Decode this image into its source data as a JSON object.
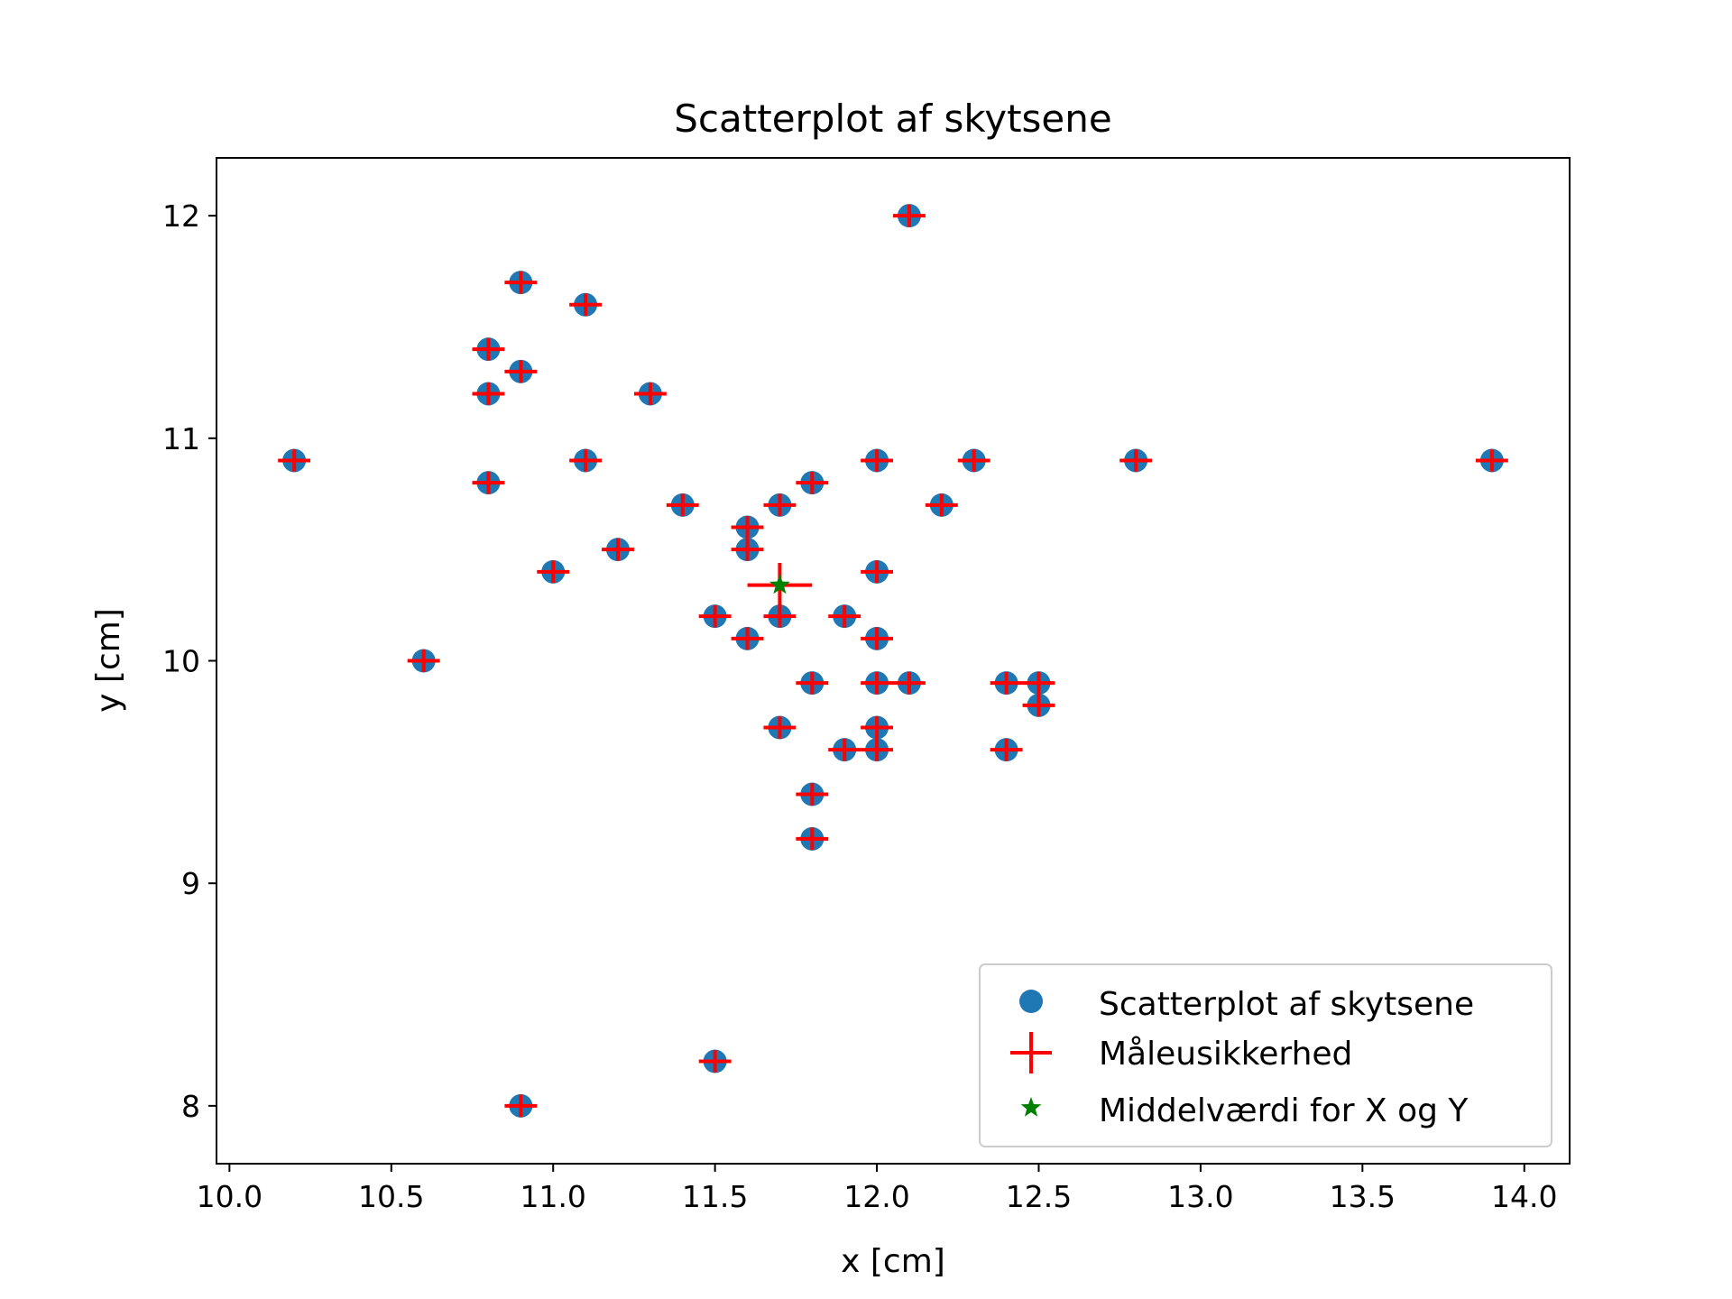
{
  "colors": {
    "points": "#1f77b4",
    "error_bars": "#ff0000",
    "mean": "#008000",
    "axes": "#000000",
    "legend_border": "#cccccc"
  },
  "chart_data": {
    "type": "scatter",
    "title": "Scatterplot af skytsene",
    "xlabel": "x [cm]",
    "ylabel": "y [cm]",
    "xlim": [
      9.96,
      14.14
    ],
    "ylim": [
      7.74,
      12.26
    ],
    "xticks": [
      10.0,
      10.5,
      11.0,
      11.5,
      12.0,
      12.5,
      13.0,
      13.5,
      14.0
    ],
    "xtick_labels": [
      "10.0",
      "10.5",
      "11.0",
      "11.5",
      "12.0",
      "12.5",
      "13.0",
      "13.5",
      "14.0"
    ],
    "yticks": [
      8,
      9,
      10,
      11,
      12
    ],
    "ytick_labels": [
      "8",
      "9",
      "10",
      "11",
      "12"
    ],
    "grid": false,
    "legend_position": "lower right",
    "legend": [
      "Scatterplot af skytsene",
      "Måleusikkerhed",
      "Middelværdi for X og Y"
    ],
    "series": [
      {
        "name": "Scatterplot af skytsene",
        "marker": "circle",
        "x": [
          12.1,
          10.9,
          11.1,
          10.8,
          10.9,
          10.8,
          11.3,
          10.2,
          11.1,
          12.0,
          12.3,
          12.8,
          13.9,
          10.8,
          11.4,
          11.7,
          11.8,
          12.2,
          11.6,
          11.2,
          11.6,
          11.0,
          12.0,
          11.5,
          11.7,
          11.9,
          11.6,
          12.0,
          10.6,
          11.8,
          12.0,
          12.1,
          12.4,
          12.5,
          12.5,
          11.7,
          12.0,
          11.9,
          12.0,
          12.4,
          11.8,
          11.8,
          11.5,
          10.9
        ],
        "y": [
          12.0,
          11.7,
          11.6,
          11.4,
          11.3,
          11.2,
          11.2,
          10.9,
          10.9,
          10.9,
          10.9,
          10.9,
          10.9,
          10.8,
          10.7,
          10.7,
          10.8,
          10.7,
          10.6,
          10.5,
          10.5,
          10.4,
          10.4,
          10.2,
          10.2,
          10.2,
          10.1,
          10.1,
          10.0,
          9.9,
          9.9,
          9.9,
          9.9,
          9.9,
          9.8,
          9.7,
          9.7,
          9.6,
          9.6,
          9.6,
          9.4,
          9.2,
          8.2,
          8.0
        ]
      },
      {
        "name": "Måleusikkerhed",
        "marker": "error-cross",
        "xerr": 0.05,
        "yerr": 0.05,
        "x_from_series": 0
      },
      {
        "name": "Middelværdi for X og Y",
        "marker": "star",
        "x": [
          11.7
        ],
        "y": [
          10.34
        ],
        "xerr": 0.1,
        "yerr": 0.1
      }
    ]
  }
}
